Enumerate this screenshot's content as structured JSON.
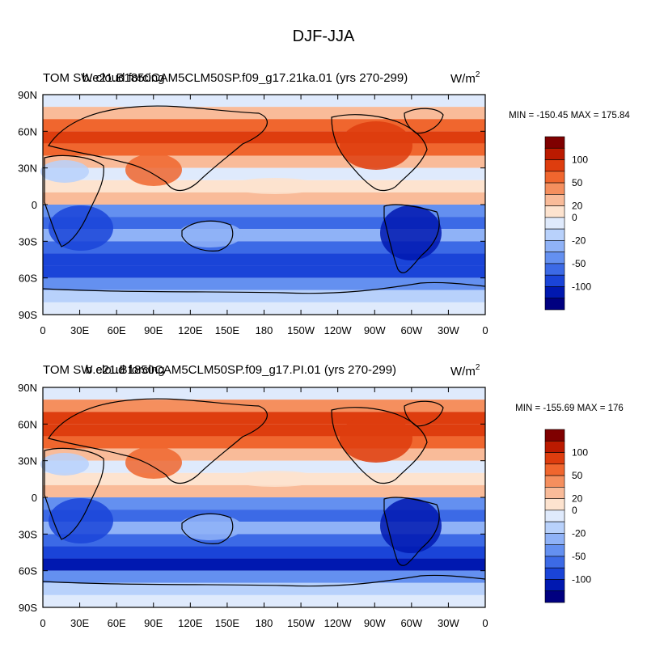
{
  "figure_title": "DJF-JJA",
  "chart_data": [
    {
      "type": "heatmap",
      "left_title": "TOM SW cloud forcing",
      "center_title": "b.e21.B1850CAM5CLM50SP.f09_g17.21ka.01 (yrs 270-299)",
      "units_label": "W/m",
      "units_exponent": "2",
      "min_label": "MIN =",
      "min_value": -150.45,
      "max_label": "MAX =",
      "max_value": 175.84,
      "x_ticks": [
        "0",
        "30E",
        "60E",
        "90E",
        "120E",
        "150E",
        "180",
        "150W",
        "120W",
        "90W",
        "60W",
        "30W",
        "0"
      ],
      "y_ticks": [
        "90N",
        "60N",
        "30N",
        "0",
        "30S",
        "60S",
        "90S"
      ],
      "levels": [
        100,
        50,
        20,
        0,
        -20,
        -50,
        -100
      ],
      "colorbar_colors": [
        "#7f0000",
        "#bb1a00",
        "#de3d0e",
        "#f0662e",
        "#f58f5e",
        "#f9bb99",
        "#fde3cf",
        "#dfeafc",
        "#b8d1fb",
        "#8fb2f7",
        "#6490f0",
        "#3c6ae6",
        "#1a44d8",
        "#0018b0",
        "#000080"
      ],
      "zonal_profile": [
        {
          "lat": 85,
          "value": 2
        },
        {
          "lat": 75,
          "value": 25
        },
        {
          "lat": 65,
          "value": 70
        },
        {
          "lat": 55,
          "value": 80
        },
        {
          "lat": 45,
          "value": 60
        },
        {
          "lat": 35,
          "value": 25
        },
        {
          "lat": 25,
          "value": 5
        },
        {
          "lat": 15,
          "value": 15
        },
        {
          "lat": 5,
          "value": 25
        },
        {
          "lat": -5,
          "value": -30
        },
        {
          "lat": -15,
          "value": -45
        },
        {
          "lat": -25,
          "value": -20
        },
        {
          "lat": -35,
          "value": -40
        },
        {
          "lat": -45,
          "value": -70
        },
        {
          "lat": -55,
          "value": -75
        },
        {
          "lat": -65,
          "value": -30
        },
        {
          "lat": -75,
          "value": -5
        },
        {
          "lat": -85,
          "value": 0
        }
      ]
    },
    {
      "type": "heatmap",
      "left_title": "TOM SW cloud forcing",
      "center_title": "b.e21.B1850CAM5CLM50SP.f09_g17.PI.01 (yrs 270-299)",
      "units_label": "W/m",
      "units_exponent": "2",
      "min_label": "MIN =",
      "min_value": -155.69,
      "max_label": "MAX =",
      "max_value": 176.0,
      "x_ticks": [
        "0",
        "30E",
        "60E",
        "90E",
        "120E",
        "150E",
        "180",
        "150W",
        "120W",
        "90W",
        "60W",
        "30W",
        "0"
      ],
      "y_ticks": [
        "90N",
        "60N",
        "30N",
        "0",
        "30S",
        "60S",
        "90S"
      ],
      "levels": [
        100,
        50,
        20,
        0,
        -20,
        -50,
        -100
      ],
      "colorbar_colors": [
        "#7f0000",
        "#bb1a00",
        "#de3d0e",
        "#f0662e",
        "#f58f5e",
        "#f9bb99",
        "#fde3cf",
        "#dfeafc",
        "#b8d1fb",
        "#8fb2f7",
        "#6490f0",
        "#3c6ae6",
        "#1a44d8",
        "#0018b0",
        "#000080"
      ],
      "zonal_profile": [
        {
          "lat": 85,
          "value": 2
        },
        {
          "lat": 75,
          "value": 45
        },
        {
          "lat": 65,
          "value": 75
        },
        {
          "lat": 55,
          "value": 80
        },
        {
          "lat": 45,
          "value": 55
        },
        {
          "lat": 35,
          "value": 20
        },
        {
          "lat": 25,
          "value": 5
        },
        {
          "lat": 15,
          "value": 15
        },
        {
          "lat": 5,
          "value": 25
        },
        {
          "lat": -5,
          "value": -30
        },
        {
          "lat": -15,
          "value": -40
        },
        {
          "lat": -25,
          "value": -15
        },
        {
          "lat": -35,
          "value": -40
        },
        {
          "lat": -45,
          "value": -70
        },
        {
          "lat": -55,
          "value": -80
        },
        {
          "lat": -65,
          "value": -30
        },
        {
          "lat": -75,
          "value": -5
        },
        {
          "lat": -85,
          "value": 0
        }
      ]
    }
  ]
}
